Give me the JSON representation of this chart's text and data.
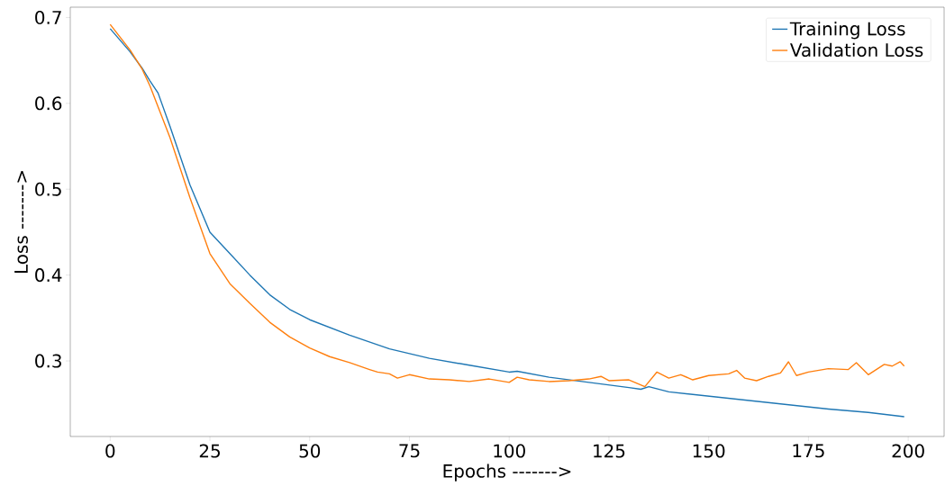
{
  "chart_data": {
    "type": "line",
    "xlabel": "Epochs ------->",
    "ylabel": "Loss ------->",
    "xlim": [
      -10,
      209
    ],
    "ylim": [
      0.212,
      0.712
    ],
    "xticks": [
      0,
      25,
      50,
      75,
      100,
      125,
      150,
      175,
      200
    ],
    "yticks": [
      0.3,
      0.4,
      0.5,
      0.6,
      0.7
    ],
    "grid": false,
    "legend": "top right",
    "marker": "none",
    "line_style": "solid",
    "series": [
      {
        "name": "Training Loss",
        "color": "#1f77b4",
        "x": [
          0,
          5,
          8,
          10,
          12,
          15,
          20,
          25,
          30,
          35,
          40,
          45,
          50,
          60,
          70,
          80,
          90,
          100,
          102,
          110,
          120,
          130,
          133,
          135,
          140,
          150,
          160,
          170,
          180,
          190,
          199
        ],
        "values": [
          0.687,
          0.66,
          0.641,
          0.626,
          0.612,
          0.573,
          0.505,
          0.45,
          0.425,
          0.4,
          0.377,
          0.36,
          0.348,
          0.33,
          0.314,
          0.303,
          0.295,
          0.287,
          0.288,
          0.281,
          0.275,
          0.269,
          0.267,
          0.27,
          0.264,
          0.259,
          0.254,
          0.249,
          0.244,
          0.24,
          0.235
        ]
      },
      {
        "name": "Validation Loss",
        "color": "#ff7f0e",
        "x": [
          0,
          5,
          8,
          10,
          15,
          20,
          25,
          30,
          35,
          40,
          45,
          50,
          55,
          60,
          65,
          67,
          70,
          72,
          75,
          80,
          85,
          90,
          95,
          100,
          102,
          105,
          110,
          115,
          120,
          123,
          125,
          130,
          132,
          134,
          137,
          140,
          143,
          146,
          150,
          155,
          157,
          159,
          162,
          165,
          168,
          170,
          172,
          175,
          180,
          185,
          187,
          190,
          194,
          196,
          198,
          199
        ],
        "values": [
          0.692,
          0.662,
          0.64,
          0.62,
          0.56,
          0.49,
          0.425,
          0.39,
          0.367,
          0.345,
          0.328,
          0.315,
          0.305,
          0.298,
          0.29,
          0.287,
          0.285,
          0.28,
          0.284,
          0.279,
          0.278,
          0.276,
          0.279,
          0.275,
          0.281,
          0.278,
          0.276,
          0.277,
          0.279,
          0.282,
          0.277,
          0.278,
          0.274,
          0.27,
          0.287,
          0.28,
          0.284,
          0.278,
          0.283,
          0.285,
          0.289,
          0.28,
          0.277,
          0.282,
          0.286,
          0.299,
          0.283,
          0.287,
          0.291,
          0.29,
          0.298,
          0.284,
          0.296,
          0.294,
          0.299,
          0.294
        ]
      }
    ]
  }
}
